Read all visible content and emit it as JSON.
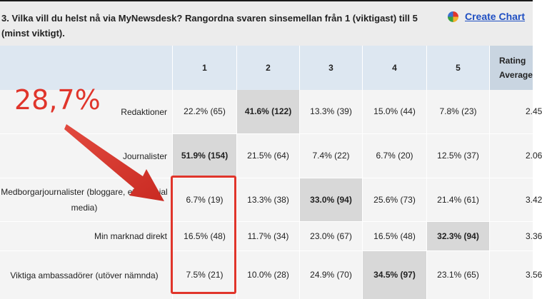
{
  "question": {
    "text": "3. Vilka vill du helst nå via MyNewsdesk? Rangordna svaren sinsemellan från 1 (viktigast) till 5 (minst viktigt).",
    "create_chart_label": "Create Chart",
    "create_chart_icon": "pie-chart-icon"
  },
  "table": {
    "columns": [
      "1",
      "2",
      "3",
      "4",
      "5",
      "Rating Average"
    ],
    "rows": [
      {
        "label": "Redaktioner",
        "cells": [
          "22.2% (65)",
          "41.6% (122)",
          "13.3% (39)",
          "15.0% (44)",
          "7.8% (23)"
        ],
        "highlight_index": 1,
        "rating": "2.45"
      },
      {
        "label": "Journalister",
        "cells": [
          "51.9% (154)",
          "21.5% (64)",
          "7.4% (22)",
          "6.7% (20)",
          "12.5% (37)"
        ],
        "highlight_index": 0,
        "rating": "2.06"
      },
      {
        "label": "Medborgarjournalister (bloggare, etc i social media)",
        "cells": [
          "6.7% (19)",
          "13.3% (38)",
          "33.0% (94)",
          "25.6% (73)",
          "21.4% (61)"
        ],
        "highlight_index": 2,
        "rating": "3.42"
      },
      {
        "label": "Min marknad direkt",
        "cells": [
          "16.5% (48)",
          "11.7% (34)",
          "23.0% (67)",
          "16.5% (48)",
          "32.3% (94)"
        ],
        "highlight_index": 4,
        "rating": "3.36"
      },
      {
        "label": "Viktiga ambassadörer (utöver nämnda)",
        "cells": [
          "7.5% (21)",
          "10.0% (28)",
          "24.9% (70)",
          "34.5% (97)",
          "23.1% (65)"
        ],
        "highlight_index": 3,
        "rating": "3.56"
      }
    ]
  },
  "annotation": {
    "text": "28,7%",
    "color": "#e0352b"
  }
}
